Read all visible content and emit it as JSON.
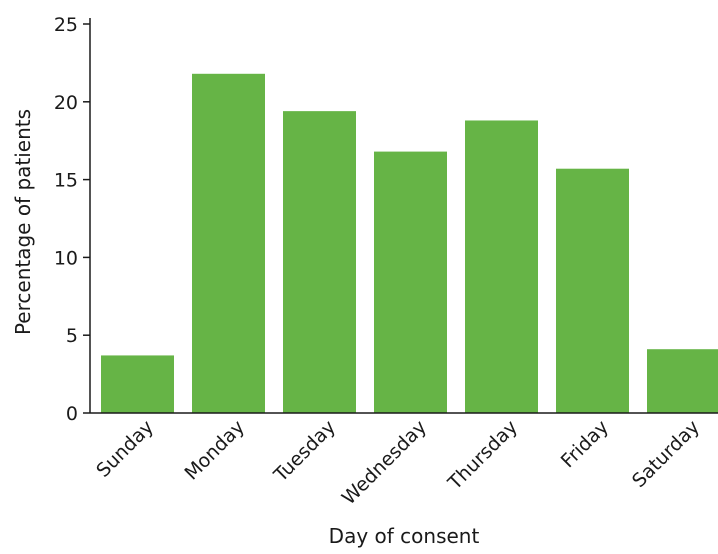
{
  "chart_data": {
    "type": "bar",
    "categories": [
      "Sunday",
      "Monday",
      "Tuesday",
      "Wednesday",
      "Thursday",
      "Friday",
      "Saturday"
    ],
    "values": [
      3.7,
      21.8,
      19.4,
      16.8,
      18.8,
      15.7,
      4.1
    ],
    "xlabel": "Day of consent",
    "ylabel": "Percentage of patients",
    "ylim": [
      0,
      25
    ],
    "yticks": [
      "0",
      "5",
      "10",
      "15",
      "20",
      "25"
    ],
    "bar_color": "#66b446",
    "grid": false,
    "legend": "none"
  }
}
